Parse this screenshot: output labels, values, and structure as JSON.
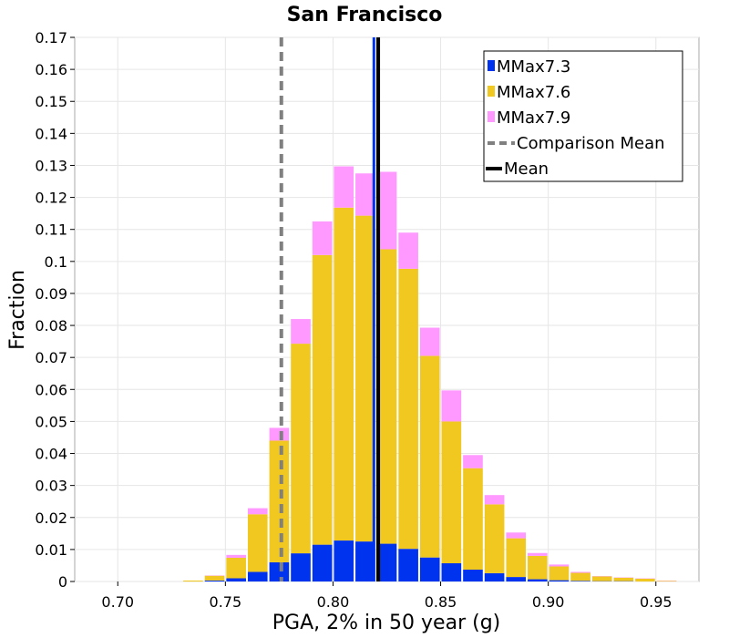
{
  "chart_data": {
    "type": "bar",
    "stacked": true,
    "title": "San Francisco",
    "xlabel": "PGA, 2% in 50 year (g)",
    "ylabel": "Fraction",
    "xlim": [
      0.68,
      0.97
    ],
    "ylim": [
      0,
      0.17
    ],
    "bin_width": 0.01,
    "x_ticks": [
      "0.70",
      "0.75",
      "0.80",
      "0.85",
      "0.90",
      "0.95"
    ],
    "x_tick_values": [
      0.7,
      0.75,
      0.8,
      0.85,
      0.9,
      0.95
    ],
    "y_ticks": [
      "0",
      "0.01",
      "0.02",
      "0.03",
      "0.04",
      "0.05",
      "0.06",
      "0.07",
      "0.08",
      "0.09",
      "0.1",
      "0.11",
      "0.12",
      "0.13",
      "0.14",
      "0.15",
      "0.16",
      "0.17"
    ],
    "y_tick_values": [
      0,
      0.01,
      0.02,
      0.03,
      0.04,
      0.05,
      0.06,
      0.07,
      0.08,
      0.09,
      0.1,
      0.11,
      0.12,
      0.13,
      0.14,
      0.15,
      0.16,
      0.17
    ],
    "bin_centers": [
      0.735,
      0.745,
      0.755,
      0.765,
      0.775,
      0.785,
      0.795,
      0.805,
      0.815,
      0.825,
      0.835,
      0.845,
      0.855,
      0.865,
      0.875,
      0.885,
      0.895,
      0.905,
      0.915,
      0.925,
      0.935,
      0.945,
      0.955
    ],
    "series": [
      {
        "name": "MMax7.3",
        "color": "#0033ee",
        "values": [
          0.0,
          0.0003,
          0.001,
          0.003,
          0.006,
          0.0088,
          0.0115,
          0.0128,
          0.0125,
          0.0118,
          0.0102,
          0.0075,
          0.0057,
          0.0037,
          0.0026,
          0.0014,
          0.0007,
          0.0004,
          0.0002,
          0.0001,
          0.0001,
          0.0,
          0.0
        ]
      },
      {
        "name": "MMax7.6",
        "color": "#f0c820",
        "values": [
          0.0003,
          0.0015,
          0.0064,
          0.018,
          0.038,
          0.0655,
          0.0905,
          0.104,
          0.1018,
          0.092,
          0.0875,
          0.063,
          0.0443,
          0.0317,
          0.0215,
          0.0121,
          0.0073,
          0.0043,
          0.0025,
          0.0015,
          0.0011,
          0.0009,
          0.0002
        ]
      },
      {
        "name": "MMax7.9",
        "color": "#ff99ff",
        "values": [
          0.0,
          0.0001,
          0.0009,
          0.0019,
          0.004,
          0.0077,
          0.0105,
          0.0129,
          0.0132,
          0.0242,
          0.0113,
          0.0088,
          0.0097,
          0.0041,
          0.0029,
          0.0018,
          0.0009,
          0.0006,
          0.0003,
          0.0001,
          0.0001,
          0.0001,
          0.0001
        ]
      }
    ],
    "lines": [
      {
        "name": "Comparison Mean",
        "x": 0.776,
        "style": "dashed",
        "color": "#808080"
      },
      {
        "name": "Mean",
        "x": 0.821,
        "style": "solid",
        "color": "#000000"
      }
    ],
    "highlight_line": {
      "x": 0.819,
      "color": "#0033ee"
    },
    "legend": {
      "placement": "top-right",
      "entries": [
        {
          "label": "MMax7.3",
          "kind": "box",
          "color": "#0033ee"
        },
        {
          "label": "MMax7.6",
          "kind": "box",
          "color": "#f0c820"
        },
        {
          "label": "MMax7.9",
          "kind": "box",
          "color": "#ff99ff"
        },
        {
          "label": "Comparison Mean",
          "kind": "dashed",
          "color": "#808080"
        },
        {
          "label": "Mean",
          "kind": "solid",
          "color": "#000000"
        }
      ]
    },
    "grid": true
  }
}
